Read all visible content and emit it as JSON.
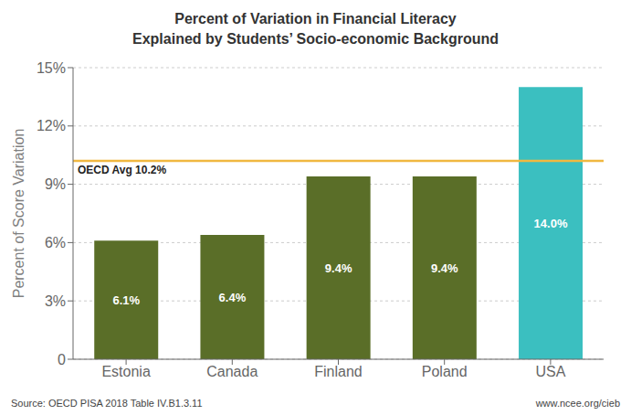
{
  "chart_data": {
    "type": "bar",
    "title": "Percent of Variation in Financial Literacy",
    "subtitle": "Explained by Students’ Socio-economic Background",
    "categories": [
      "Estonia",
      "Canada",
      "Finland",
      "Poland",
      "USA"
    ],
    "values": [
      6.1,
      6.4,
      9.4,
      9.4,
      14.0
    ],
    "value_labels": [
      "6.1%",
      "6.4%",
      "9.4%",
      "9.4%",
      "14.0%"
    ],
    "data_labels": true,
    "colors": [
      "#5a6e28",
      "#5a6e28",
      "#5a6e28",
      "#5a6e28",
      "#3bbfc0"
    ],
    "ylabel": "Percent of Score Variation",
    "ylim": [
      0,
      15
    ],
    "yticks": [
      0,
      {
        "value": 3,
        "label": "3%"
      },
      {
        "value": 6,
        "label": "6%"
      },
      {
        "value": 9,
        "label": "9%"
      },
      {
        "value": 12,
        "label": "12%"
      },
      {
        "value": 15,
        "label": "15%"
      }
    ],
    "grid": true,
    "reference_line": {
      "value": 10.2,
      "label": "OECD Avg 10.2%",
      "color": "#f0b840"
    },
    "annotations": [
      "Source: OECD PISA 2018 Table IV.B1.3.11",
      "www.ncee.org/cieb"
    ]
  }
}
